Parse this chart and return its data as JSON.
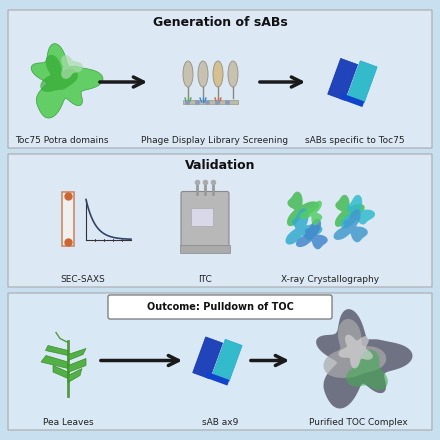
{
  "bg_color": "#d6e8f5",
  "panel_bg": "#ddeef8",
  "border_color": "#aaaaaa",
  "title_fontsize": 9,
  "label_fontsize": 6.5,
  "arrow_color": "#1a1a1a",
  "panel1_title": "Generation of sABs",
  "panel1_labels": [
    "Toc75 Potra domains",
    "Phage Display Library Screening",
    "sABs specific to Toc75"
  ],
  "panel2_title": "Validation",
  "panel2_labels": [
    "SEC-SAXS",
    "ITC",
    "X-ray Crystallography"
  ],
  "panel3_title": "Outcome: Pulldown of TOC",
  "panel3_labels": [
    "Pea Leaves",
    "sAB ax9",
    "Purified TOC Complex"
  ],
  "outer_bg": "#c8dff0",
  "white": "#ffffff"
}
